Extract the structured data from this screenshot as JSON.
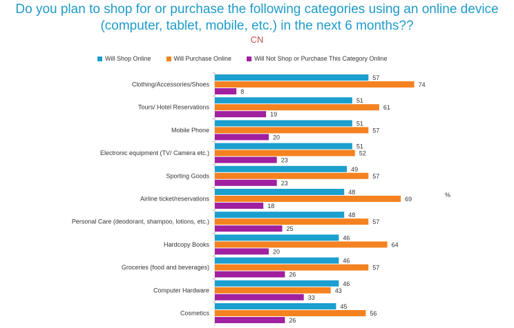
{
  "title_line1": "Do you plan to shop for or purchase the following categories using an online device",
  "title_line2": "(computer, tablet, mobile, etc.) in the next 6 months??",
  "subtitle": "CN",
  "unit_label": "%",
  "chart_data": {
    "type": "bar",
    "orientation": "horizontal",
    "categories": [
      "Clothing/Accessories/Shoes",
      "Tours/ Hotel Reservations",
      "Mobile Phone",
      "Electronic equipment (TV/ Camera etc.)",
      "Sporting Goods",
      "Airline ticket/reservations",
      "Personal Care (deodorant, shampoo, lotions, etc.)",
      "Hardcopy Books",
      "Groceries (food and beverages)",
      "Computer Hardware",
      "Cosmetics"
    ],
    "series": [
      {
        "name": "Will Shop Online",
        "color": "#1b9fce",
        "values": [
          57,
          51,
          51,
          51,
          49,
          48,
          48,
          46,
          46,
          46,
          45
        ]
      },
      {
        "name": "Will Purchase Online",
        "color": "#f58220",
        "values": [
          74,
          61,
          57,
          52,
          57,
          69,
          57,
          64,
          57,
          43,
          56
        ]
      },
      {
        "name": "Will Not Shop or Purchase This Category Online",
        "color": "#a020a0",
        "values": [
          8,
          19,
          20,
          23,
          23,
          18,
          25,
          20,
          26,
          33,
          26
        ]
      }
    ],
    "legend_position": "top",
    "grid": false,
    "xlim": [
      0,
      100
    ]
  }
}
